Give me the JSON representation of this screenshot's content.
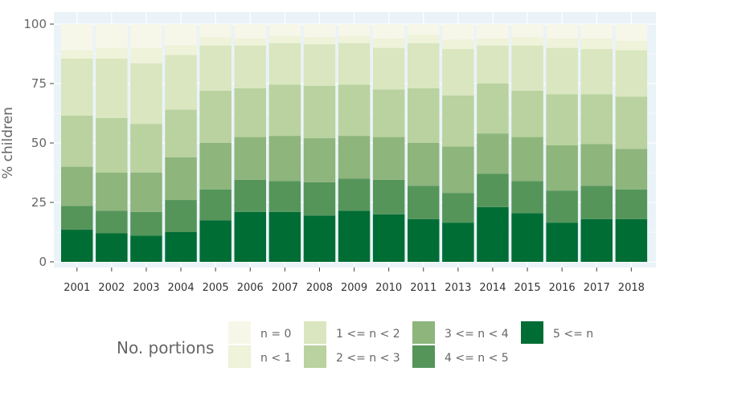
{
  "chart_data": {
    "type": "bar",
    "stacked": true,
    "normalized": true,
    "xlabel": "",
    "ylabel": "% children",
    "ylim": [
      0,
      100
    ],
    "yticks": [
      0,
      25,
      50,
      75,
      100
    ],
    "grid": true,
    "legend_position": "bottom",
    "legend_title": "No. portions",
    "categories": [
      "2001",
      "2002",
      "2003",
      "2004",
      "2005",
      "2006",
      "2007",
      "2008",
      "2009",
      "2010",
      "2011",
      "2013",
      "2014",
      "2015",
      "2016",
      "2017",
      "2018"
    ],
    "series": [
      {
        "name": "5 <= n",
        "color": "#006d35",
        "values": [
          13.5,
          12,
          11,
          12.5,
          17.5,
          21,
          21,
          19.5,
          21.5,
          20,
          18,
          16.5,
          23,
          20.5,
          16.5,
          18,
          18
        ]
      },
      {
        "name": "4 <= n < 5",
        "color": "#55955a",
        "values": [
          10,
          9.5,
          10,
          13.5,
          13,
          13.5,
          13,
          14,
          13.5,
          14.5,
          14,
          12.5,
          14,
          13.5,
          13.5,
          14,
          12.5
        ]
      },
      {
        "name": "3 <= n < 4",
        "color": "#8db57c",
        "values": [
          16.5,
          16,
          16.5,
          18,
          19.5,
          18,
          19,
          18.5,
          18,
          18,
          18,
          19.5,
          17,
          18.5,
          19,
          17.5,
          17
        ]
      },
      {
        "name": "2 <= n < 3",
        "color": "#b9d29f",
        "values": [
          21.5,
          23,
          20.5,
          20,
          22,
          20.5,
          21.5,
          22,
          21.5,
          20,
          23,
          21.5,
          21,
          19.5,
          21.5,
          21,
          22
        ]
      },
      {
        "name": "1 <= n < 2",
        "color": "#d9e6bf",
        "values": [
          24,
          25,
          25.5,
          23,
          19,
          18,
          17.5,
          17.5,
          17.5,
          17.5,
          19,
          19.5,
          16,
          19,
          19.5,
          19,
          19.5
        ]
      },
      {
        "name": "n < 1",
        "color": "#eef3d9",
        "values": [
          3.5,
          4.5,
          6.5,
          4,
          3.5,
          3,
          3,
          3,
          3,
          4,
          3.5,
          4,
          3,
          3.5,
          4,
          4.5,
          4
        ]
      },
      {
        "name": "n = 0",
        "color": "#f7f7e9",
        "values": [
          11,
          10,
          10,
          9,
          5.5,
          6,
          5,
          5.5,
          5,
          6,
          4.5,
          6.5,
          6,
          5.5,
          6,
          6,
          7
        ]
      }
    ],
    "legend_order": [
      "n = 0",
      "n < 1",
      "1 <= n < 2",
      "2 <= n < 3",
      "3 <= n < 4",
      "4 <= n < 5",
      "5 <= n"
    ]
  }
}
